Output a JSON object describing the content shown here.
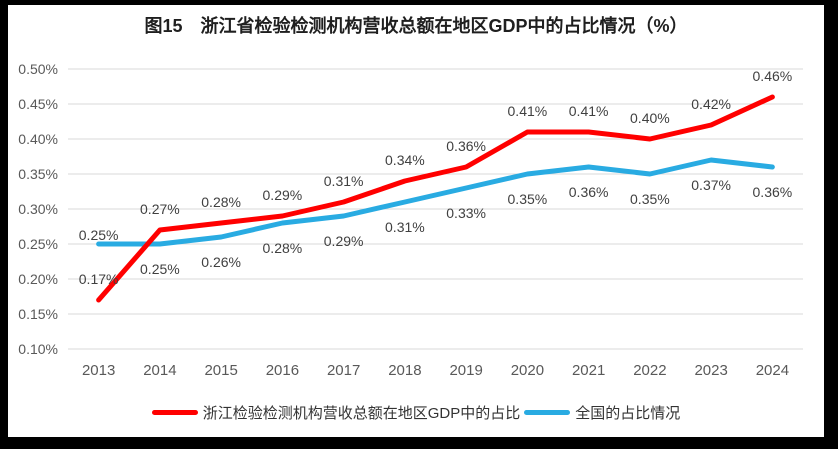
{
  "title": "图15　浙江省检验检测机构营收总额在地区GDP中的占比情况（%）",
  "colors": {
    "zhejiang_line": "#FF0000",
    "national_line": "#29ABE2",
    "gridline": "#D9D9D9",
    "axis_text": "#595959",
    "data_label_text": "#404040",
    "frame_border": "#000000"
  },
  "chart_data": {
    "type": "line",
    "title": "图15　浙江省检验检测机构营收总额在地区GDP中的占比情况（%）",
    "categories": [
      "2013",
      "2014",
      "2015",
      "2016",
      "2017",
      "2018",
      "2019",
      "2020",
      "2021",
      "2022",
      "2023",
      "2024"
    ],
    "series": [
      {
        "name": "浙江检验检测机构营收总额在地区GDP中的占比",
        "color": "#FF0000",
        "values": [
          0.17,
          0.27,
          0.28,
          0.29,
          0.31,
          0.34,
          0.36,
          0.41,
          0.41,
          0.4,
          0.42,
          0.46
        ],
        "label_position": "above"
      },
      {
        "name": "全国的占比情况",
        "color": "#29ABE2",
        "values": [
          0.25,
          0.25,
          0.26,
          0.28,
          0.29,
          0.31,
          0.33,
          0.35,
          0.36,
          0.35,
          0.37,
          0.36
        ],
        "label_position": "below",
        "label_overrides": {
          "0": "touch-above"
        }
      }
    ],
    "y_axis": {
      "min": 0.1,
      "max": 0.5,
      "step": 0.05,
      "tick_labels": [
        "0.10%",
        "0.15%",
        "0.20%",
        "0.25%",
        "0.30%",
        "0.35%",
        "0.40%",
        "0.45%",
        "0.50%"
      ]
    },
    "data_label_format": "0.00%",
    "grid": "horizontal-only",
    "legend_position": "bottom"
  }
}
